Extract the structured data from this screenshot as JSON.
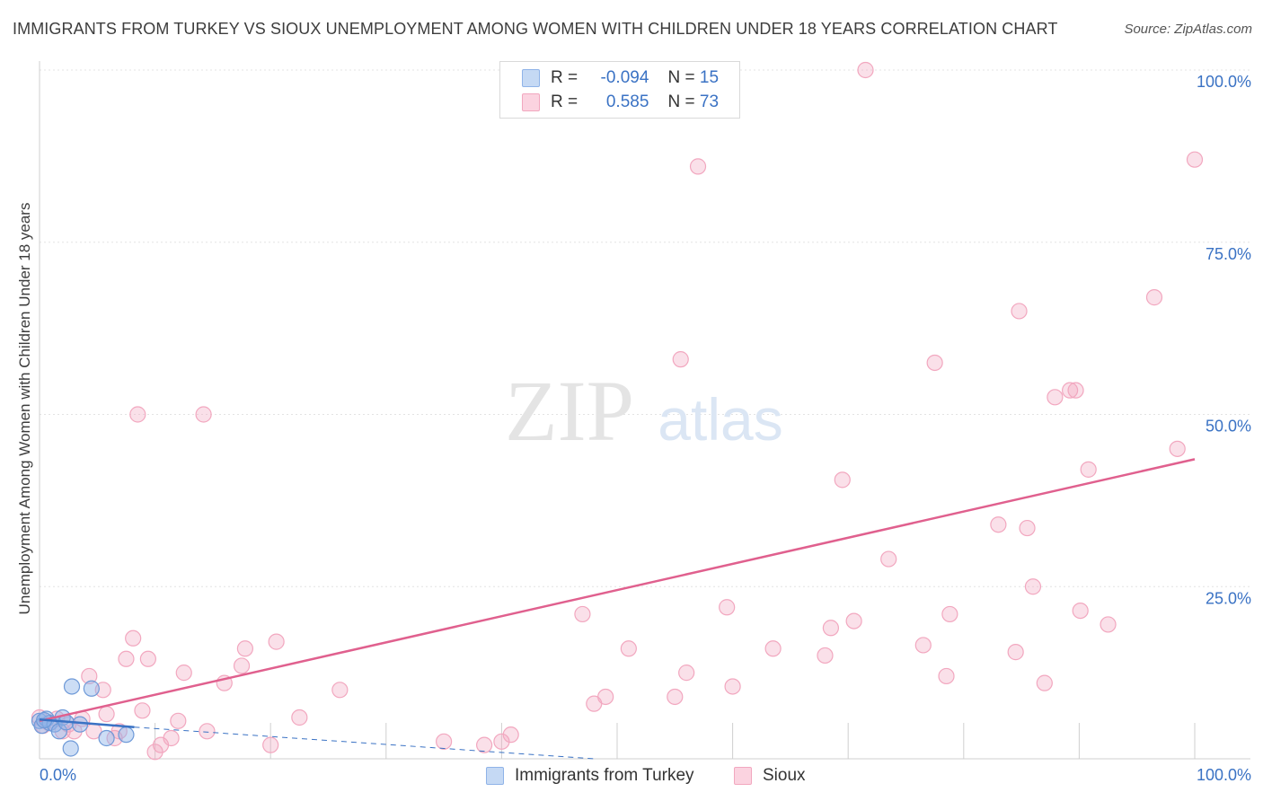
{
  "title": "IMMIGRANTS FROM TURKEY VS SIOUX UNEMPLOYMENT AMONG WOMEN WITH CHILDREN UNDER 18 YEARS CORRELATION CHART",
  "source": "Source: ZipAtlas.com",
  "watermark": {
    "zip": "ZIP",
    "atlas": "atlas"
  },
  "legend_top": [
    {
      "r_label": "R =",
      "r_value": "-0.094",
      "n_label": "N =",
      "n_value": "15"
    },
    {
      "r_label": "R =",
      "r_value": "0.585",
      "n_label": "N =",
      "n_value": "73"
    }
  ],
  "chart_data": {
    "type": "scatter",
    "ylabel": "Unemployment Among Women with Children Under 18 years",
    "xlim": [
      0,
      100
    ],
    "ylim": [
      0,
      100
    ],
    "x_tick_labels": [
      "0.0%",
      "100.0%"
    ],
    "y_tick_labels": [
      "25.0%",
      "50.0%",
      "75.0%",
      "100.0%"
    ],
    "y_ticks": [
      25,
      50,
      75,
      100
    ],
    "colors": {
      "turkey": "#8fb3e8",
      "sioux": "#f2a7bf",
      "turkey_line": "#3a72c4",
      "sioux_line": "#e0608e",
      "tick_label": "#3a72c4"
    },
    "series": [
      {
        "name": "Immigrants from Turkey",
        "points": [
          [
            0.0,
            5.5
          ],
          [
            0.2,
            4.8
          ],
          [
            0.6,
            5.8
          ],
          [
            0.9,
            5.2
          ],
          [
            1.3,
            5.0
          ],
          [
            1.7,
            4.0
          ],
          [
            2.0,
            6.0
          ],
          [
            2.3,
            5.3
          ],
          [
            2.7,
            1.5
          ],
          [
            2.8,
            10.5
          ],
          [
            3.5,
            5.0
          ],
          [
            4.5,
            10.2
          ],
          [
            5.8,
            3.0
          ],
          [
            7.5,
            3.5
          ],
          [
            0.4,
            5.6
          ]
        ],
        "regression": {
          "x": [
            0,
            8.2
          ],
          "y": [
            5.7,
            4.6
          ],
          "dashed_extension": {
            "x": [
              8.2,
              48
            ],
            "y": [
              4.6,
              0
            ]
          }
        }
      },
      {
        "name": "Sioux",
        "points": [
          [
            0.0,
            6.0
          ],
          [
            0.3,
            4.8
          ],
          [
            0.8,
            5.2
          ],
          [
            1.5,
            5.8
          ],
          [
            2.0,
            4.0
          ],
          [
            2.5,
            5.0
          ],
          [
            3.0,
            4.0
          ],
          [
            3.7,
            5.8
          ],
          [
            4.3,
            12.0
          ],
          [
            4.7,
            4.0
          ],
          [
            5.5,
            10.0
          ],
          [
            5.8,
            6.5
          ],
          [
            6.5,
            3.0
          ],
          [
            6.9,
            4.0
          ],
          [
            7.5,
            14.5
          ],
          [
            8.1,
            17.5
          ],
          [
            8.5,
            50.0
          ],
          [
            8.9,
            7.0
          ],
          [
            9.4,
            14.5
          ],
          [
            10.0,
            1.0
          ],
          [
            10.5,
            2.0
          ],
          [
            11.4,
            3.0
          ],
          [
            12.0,
            5.5
          ],
          [
            12.5,
            12.5
          ],
          [
            14.2,
            50.0
          ],
          [
            14.5,
            4.0
          ],
          [
            16.0,
            11.0
          ],
          [
            17.5,
            13.5
          ],
          [
            17.8,
            16.0
          ],
          [
            20.0,
            2.0
          ],
          [
            20.5,
            17.0
          ],
          [
            22.5,
            6.0
          ],
          [
            26.0,
            10.0
          ],
          [
            35.0,
            2.5
          ],
          [
            38.5,
            2.0
          ],
          [
            40.0,
            2.5
          ],
          [
            40.8,
            3.5
          ],
          [
            47.0,
            21.0
          ],
          [
            48.0,
            8.0
          ],
          [
            49.0,
            9.0
          ],
          [
            51.0,
            16.0
          ],
          [
            55.0,
            9.0
          ],
          [
            55.5,
            58.0
          ],
          [
            56.0,
            12.5
          ],
          [
            57.0,
            86.0
          ],
          [
            59.5,
            22.0
          ],
          [
            60.0,
            10.5
          ],
          [
            63.5,
            16.0
          ],
          [
            68.0,
            15.0
          ],
          [
            68.5,
            19.0
          ],
          [
            69.5,
            40.5
          ],
          [
            70.5,
            20.0
          ],
          [
            71.5,
            100.0
          ],
          [
            73.5,
            29.0
          ],
          [
            76.5,
            16.5
          ],
          [
            77.5,
            57.5
          ],
          [
            78.5,
            12.0
          ],
          [
            78.8,
            21.0
          ],
          [
            83.0,
            34.0
          ],
          [
            84.5,
            15.5
          ],
          [
            84.8,
            65.0
          ],
          [
            85.5,
            33.5
          ],
          [
            86.0,
            25.0
          ],
          [
            87.0,
            11.0
          ],
          [
            87.9,
            52.5
          ],
          [
            89.2,
            53.5
          ],
          [
            89.7,
            53.5
          ],
          [
            90.1,
            21.5
          ],
          [
            90.8,
            42.0
          ],
          [
            92.5,
            19.5
          ],
          [
            96.5,
            67.0
          ],
          [
            98.5,
            45.0
          ],
          [
            100.0,
            87.0
          ]
        ],
        "regression": {
          "x": [
            0,
            100
          ],
          "y": [
            5.5,
            43.5
          ]
        }
      }
    ]
  }
}
